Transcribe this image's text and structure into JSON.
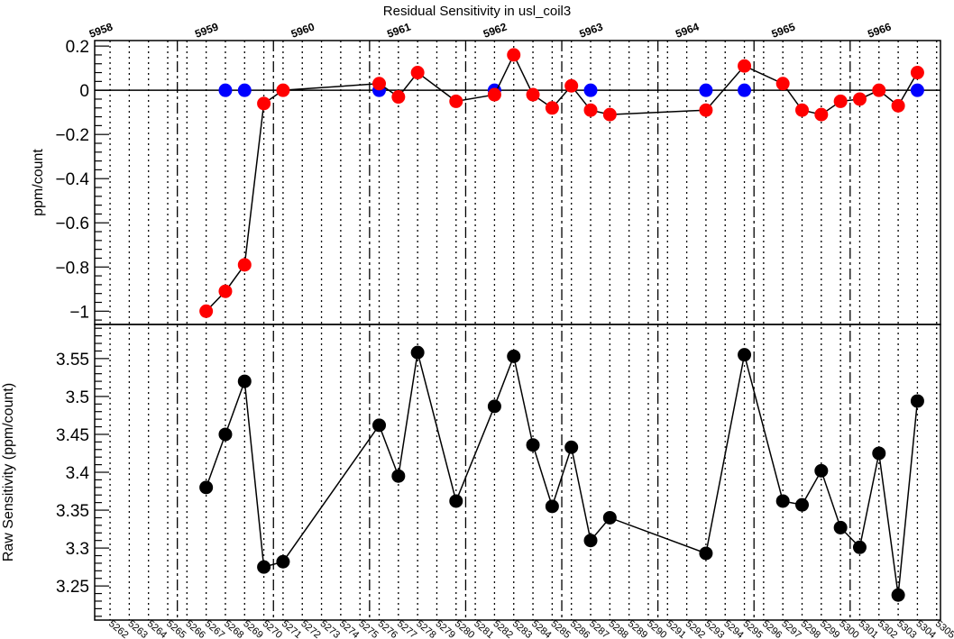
{
  "chart_data": {
    "type": "scatter",
    "title": "Residual Sensitivity in usl_coil3",
    "run_labels": [
      "5958",
      "5959",
      "5960",
      "5961",
      "5962",
      "5963",
      "5964",
      "5965",
      "5966"
    ],
    "run_boundaries": [
      5265.5,
      5270.5,
      5275.5,
      5280.5,
      5285.5,
      5290.5,
      5295.5,
      5300.5
    ],
    "run_label_positions": [
      5261,
      5266.5,
      5271.5,
      5276.5,
      5281.5,
      5286.5,
      5291.5,
      5296.5,
      5301.5
    ],
    "x_category_labels": [
      "5262",
      "5263",
      "5264",
      "5265",
      "5266",
      "5267",
      "5268",
      "5269",
      "5270",
      "5271",
      "5272",
      "5273",
      "5274",
      "5275",
      "5276",
      "5277",
      "5278",
      "5279",
      "5280",
      "5281",
      "5282",
      "5283",
      "5284",
      "5285",
      "5286",
      "5287",
      "5288",
      "5289",
      "5290",
      "5291",
      "5292",
      "5293",
      "5294",
      "5295",
      "5296",
      "5297",
      "5298",
      "5299",
      "5300",
      "5301",
      "5302",
      "5303",
      "5304",
      "5305"
    ],
    "xlim": [
      5261.2,
      5305.2
    ],
    "panels": [
      {
        "ylabel": "ppm/count",
        "ylim": [
          -1.06,
          0.225
        ],
        "yticks": [
          0.2,
          0,
          -0.2,
          -0.4,
          -0.6,
          -0.8,
          -1
        ],
        "ytick_labels": [
          "0.2",
          "0",
          "−0.2",
          "−0.4",
          "−0.6",
          "−0.8",
          "−1"
        ],
        "zero_line": true,
        "series": [
          {
            "color": "#0000ff",
            "points": [
              [
                5268,
                0
              ],
              [
                5269,
                0
              ],
              [
                5276,
                0
              ],
              [
                5282,
                0
              ],
              [
                5287,
                0
              ],
              [
                5293,
                0
              ],
              [
                5295,
                0
              ],
              [
                5304,
                0
              ]
            ]
          },
          {
            "color": "#ff0000",
            "line": true,
            "points": [
              [
                5267,
                -1.0
              ],
              [
                5268,
                -0.91
              ],
              [
                5269,
                -0.79
              ],
              [
                5270,
                -0.06
              ],
              [
                5271,
                0.0
              ],
              [
                5276,
                0.03
              ],
              [
                5277,
                -0.03
              ],
              [
                5278,
                0.08
              ],
              [
                5280,
                -0.05
              ],
              [
                5282,
                -0.02
              ],
              [
                5283,
                0.16
              ],
              [
                5284,
                -0.02
              ],
              [
                5285,
                -0.08
              ],
              [
                5286,
                0.02
              ],
              [
                5287,
                -0.09
              ],
              [
                5288,
                -0.11
              ],
              [
                5293,
                -0.09
              ],
              [
                5295,
                0.11
              ],
              [
                5297,
                0.03
              ],
              [
                5298,
                -0.09
              ],
              [
                5299,
                -0.11
              ],
              [
                5300,
                -0.05
              ],
              [
                5301,
                -0.04
              ],
              [
                5302,
                0.0
              ],
              [
                5303,
                -0.07
              ],
              [
                5304,
                0.08
              ]
            ]
          }
        ]
      },
      {
        "ylabel": "Raw Sensitivity (ppm/count)",
        "ylim": [
          3.205,
          3.595
        ],
        "yticks": [
          3.55,
          3.5,
          3.45,
          3.4,
          3.35,
          3.3,
          3.25
        ],
        "ytick_labels": [
          "3.55",
          "3.5",
          "3.45",
          "3.4",
          "3.35",
          "3.3",
          "3.25"
        ],
        "zero_line": false,
        "series": [
          {
            "color": "#000000",
            "line": true,
            "points": [
              [
                5267,
                3.38
              ],
              [
                5268,
                3.45
              ],
              [
                5269,
                3.52
              ],
              [
                5270,
                3.275
              ],
              [
                5271,
                3.282
              ],
              [
                5276,
                3.462
              ],
              [
                5277,
                3.395
              ],
              [
                5278,
                3.558
              ],
              [
                5280,
                3.362
              ],
              [
                5282,
                3.487
              ],
              [
                5283,
                3.553
              ],
              [
                5284,
                3.436
              ],
              [
                5285,
                3.355
              ],
              [
                5286,
                3.433
              ],
              [
                5287,
                3.31
              ],
              [
                5288,
                3.34
              ],
              [
                5293,
                3.293
              ],
              [
                5295,
                3.555
              ],
              [
                5297,
                3.362
              ],
              [
                5298,
                3.357
              ],
              [
                5299,
                3.402
              ],
              [
                5300,
                3.327
              ],
              [
                5301,
                3.301
              ],
              [
                5302,
                3.425
              ],
              [
                5303,
                3.238
              ],
              [
                5304,
                3.494
              ]
            ]
          }
        ]
      }
    ]
  }
}
